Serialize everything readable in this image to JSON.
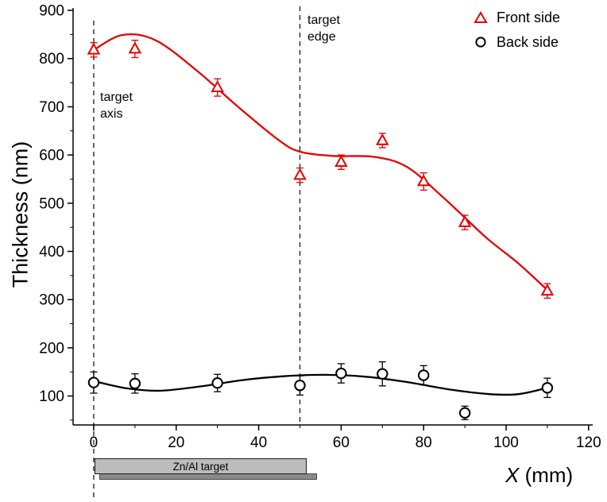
{
  "chart_data": {
    "type": "scatter",
    "title": "",
    "xlabel": "X (mm)",
    "xlabel_var": "X",
    "xlabel_unit": " (mm)",
    "ylabel": "Thickness (nm)",
    "xlim": [
      -5,
      121
    ],
    "ylim": [
      40,
      905
    ],
    "x_ticks": [
      0,
      20,
      40,
      60,
      80,
      100,
      120
    ],
    "y_ticks": [
      100,
      200,
      300,
      400,
      500,
      600,
      700,
      800,
      900
    ],
    "x_minor_step": 10,
    "y_minor_step": 50,
    "grid": false,
    "legend": {
      "position": "top-right"
    },
    "series": [
      {
        "name": "Front side",
        "marker": "triangle",
        "color": "#e60000",
        "x": [
          0,
          10,
          30,
          50,
          60,
          70,
          80,
          90,
          110
        ],
        "y": [
          818,
          820,
          740,
          558,
          585,
          630,
          545,
          460,
          318
        ],
        "yerr": [
          15,
          18,
          18,
          15,
          15,
          15,
          18,
          15,
          15
        ],
        "curve": [
          [
            0,
            818
          ],
          [
            7,
            849
          ],
          [
            15,
            838
          ],
          [
            25,
            775
          ],
          [
            35,
            700
          ],
          [
            45,
            630
          ],
          [
            50,
            607
          ],
          [
            58,
            598
          ],
          [
            68,
            596
          ],
          [
            76,
            575
          ],
          [
            85,
            510
          ],
          [
            95,
            430
          ],
          [
            103,
            375
          ],
          [
            110,
            320
          ]
        ]
      },
      {
        "name": "Back side",
        "marker": "circle",
        "color": "#000000",
        "x": [
          0,
          10,
          30,
          50,
          60,
          70,
          80,
          90,
          110
        ],
        "y": [
          128,
          126,
          127,
          122,
          147,
          146,
          143,
          65,
          117
        ],
        "yerr": [
          22,
          20,
          18,
          20,
          20,
          25,
          20,
          14,
          20
        ],
        "curve": [
          [
            0,
            131
          ],
          [
            8,
            116
          ],
          [
            16,
            111
          ],
          [
            26,
            120
          ],
          [
            36,
            133
          ],
          [
            46,
            141
          ],
          [
            56,
            144
          ],
          [
            66,
            140
          ],
          [
            76,
            129
          ],
          [
            86,
            114
          ],
          [
            96,
            104
          ],
          [
            103,
            104
          ],
          [
            110,
            117
          ]
        ]
      }
    ],
    "annotations": {
      "target_axis_line_x": 0,
      "target_edge_line_x": 50,
      "target_axis_label": "target\naxis",
      "target_edge_label": "target\nedge",
      "target_bar": {
        "label": "Zn/Al target",
        "x_start": 0,
        "x_end": 51,
        "color": "#bcbcbc",
        "shadow_color": "#8a8a8a"
      }
    }
  },
  "colors": {
    "front_side": "#e60000",
    "back_side": "#000000",
    "dashed_line": "#1a1a1a"
  }
}
